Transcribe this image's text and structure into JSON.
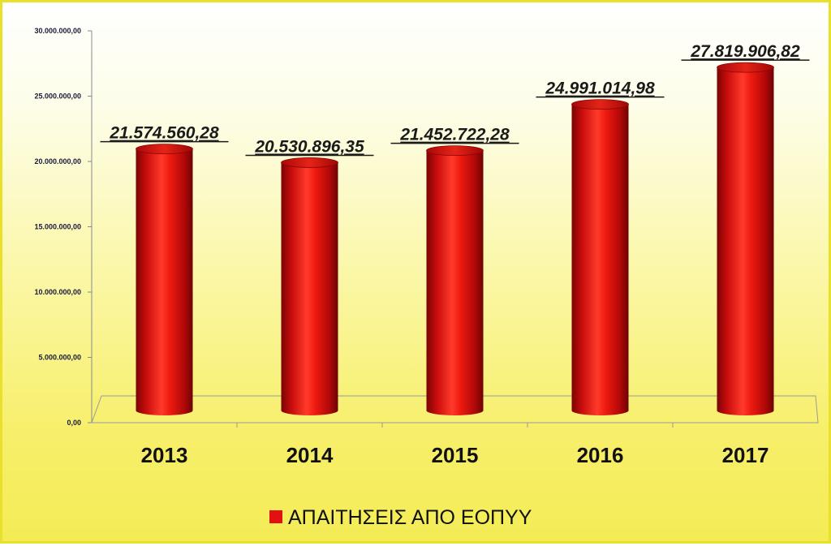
{
  "chart_data": {
    "type": "bar",
    "categories": [
      "2013",
      "2014",
      "2015",
      "2016",
      "2017"
    ],
    "series": [
      {
        "name": "ΑΠΑΙΤΗΣΕΙΣ ΑΠΟ ΕΟΠΥΥ",
        "values": [
          21574560.28,
          20530896.35,
          21452722.28,
          24991014.98,
          27819906.82
        ],
        "labels": [
          "21.574.560,28",
          "20.530.896,35",
          "21.452.722,28",
          "24.991.014,98",
          "27.819.906,82"
        ]
      }
    ],
    "yticks": [
      0,
      5000000,
      10000000,
      15000000,
      20000000,
      25000000,
      30000000
    ],
    "ytick_labels": [
      "0,00",
      "5.000.000,00",
      "10.000.000,00",
      "15.000.000,00",
      "20.000.000,00",
      "25.000.000,00",
      "30.000.000,00"
    ],
    "ylim": [
      0,
      30000000
    ],
    "legend_position": "bottom",
    "bar_color": "#e31010",
    "background_top": "#ffffff",
    "background_bottom": "#f4ec55"
  }
}
